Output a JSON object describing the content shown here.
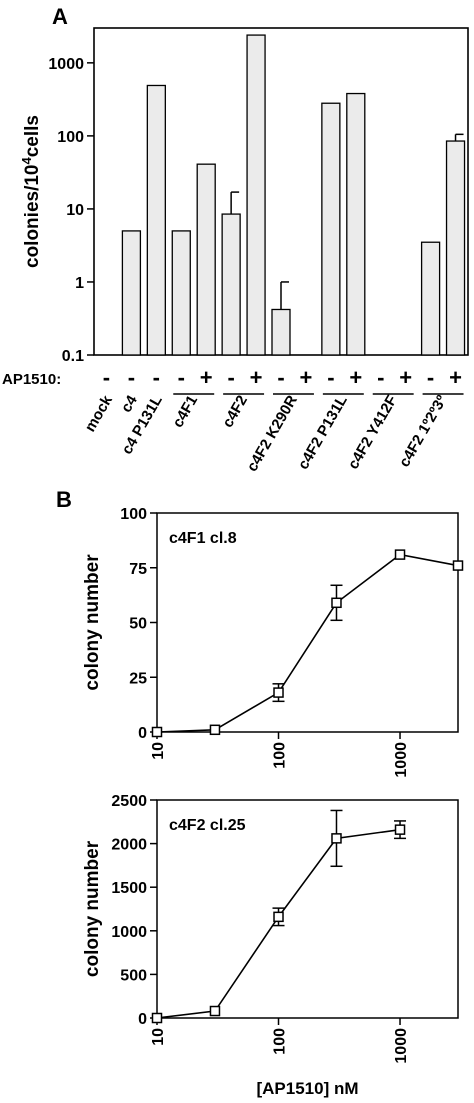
{
  "panel_a_label": "A",
  "panel_b_label": "B",
  "chart_data": [
    {
      "type": "bar",
      "panel": "A",
      "y_scale": "log",
      "ylim": [
        0.1,
        3000
      ],
      "yticks": [
        "0.1",
        "1",
        "10",
        "100",
        "1000"
      ],
      "ylabel_main": "colonies/10",
      "ylabel_sup": "4",
      "ylabel_tail": "cells",
      "treatment_label": "AP1510:",
      "bars": [
        {
          "value": null,
          "ap": "-"
        },
        {
          "value": 5,
          "ap": "-"
        },
        {
          "value": 490,
          "ap": "-"
        },
        {
          "value": 5,
          "ap": "-"
        },
        {
          "value": 41,
          "ap": "+"
        },
        {
          "value": 8.5,
          "err": 17,
          "ap": "-"
        },
        {
          "value": 2400,
          "ap": "+"
        },
        {
          "value": 0.42,
          "err": 1.0,
          "ap": "-"
        },
        {
          "value": null,
          "ap": "+"
        },
        {
          "value": 280,
          "ap": "-"
        },
        {
          "value": 380,
          "ap": "+"
        },
        {
          "value": null,
          "ap": "-"
        },
        {
          "value": null,
          "ap": "+"
        },
        {
          "value": 3.5,
          "ap": "-"
        },
        {
          "value": 85,
          "err": 105,
          "ap": "+"
        }
      ],
      "groups": [
        {
          "label": "mock",
          "bars": [
            0
          ],
          "underline": false
        },
        {
          "label": "c4",
          "bars": [
            1
          ],
          "underline": false
        },
        {
          "label": "c4 P131L",
          "bars": [
            2
          ],
          "underline": false
        },
        {
          "label": "c4F1",
          "bars": [
            3,
            4
          ],
          "underline": true
        },
        {
          "label": "c4F2",
          "bars": [
            5,
            6
          ],
          "underline": true
        },
        {
          "label": "c4F2 K290R",
          "bars": [
            7,
            8
          ],
          "underline": true
        },
        {
          "label": "c4F2 P131L",
          "bars": [
            9,
            10
          ],
          "underline": true
        },
        {
          "label": "c4F2 Y412F",
          "bars": [
            11,
            12
          ],
          "underline": true
        },
        {
          "label": "c4F2 1º2º3º",
          "bars": [
            13,
            14
          ],
          "underline": true
        }
      ]
    },
    {
      "type": "line",
      "panel": "B-top",
      "title": "c4F1 cl.8",
      "ylabel": "colony number",
      "x_scale": "log",
      "xlim": [
        10,
        3000
      ],
      "ylim": [
        0,
        100
      ],
      "xticks": [
        "10",
        "100",
        "1000"
      ],
      "yticks": [
        "0",
        "25",
        "50",
        "75",
        "100"
      ],
      "x": [
        10,
        30,
        100,
        300,
        1000,
        3000
      ],
      "y": [
        0,
        1,
        18,
        59,
        81,
        76
      ],
      "err": [
        0,
        0,
        4,
        8,
        0,
        0
      ]
    },
    {
      "type": "line",
      "panel": "B-bottom",
      "title": "c4F2 cl.25",
      "ylabel": "colony number",
      "xlabel": "[AP1510]  nM",
      "x_scale": "log",
      "xlim": [
        10,
        3000
      ],
      "ylim": [
        0,
        2500
      ],
      "xticks": [
        "10",
        "100",
        "1000"
      ],
      "yticks": [
        "0",
        "500",
        "1000",
        "1500",
        "2000",
        "2500"
      ],
      "x": [
        10,
        30,
        100,
        300,
        1000
      ],
      "y": [
        0,
        80,
        1160,
        2060,
        2160
      ],
      "err": [
        0,
        0,
        100,
        320,
        100
      ]
    }
  ]
}
